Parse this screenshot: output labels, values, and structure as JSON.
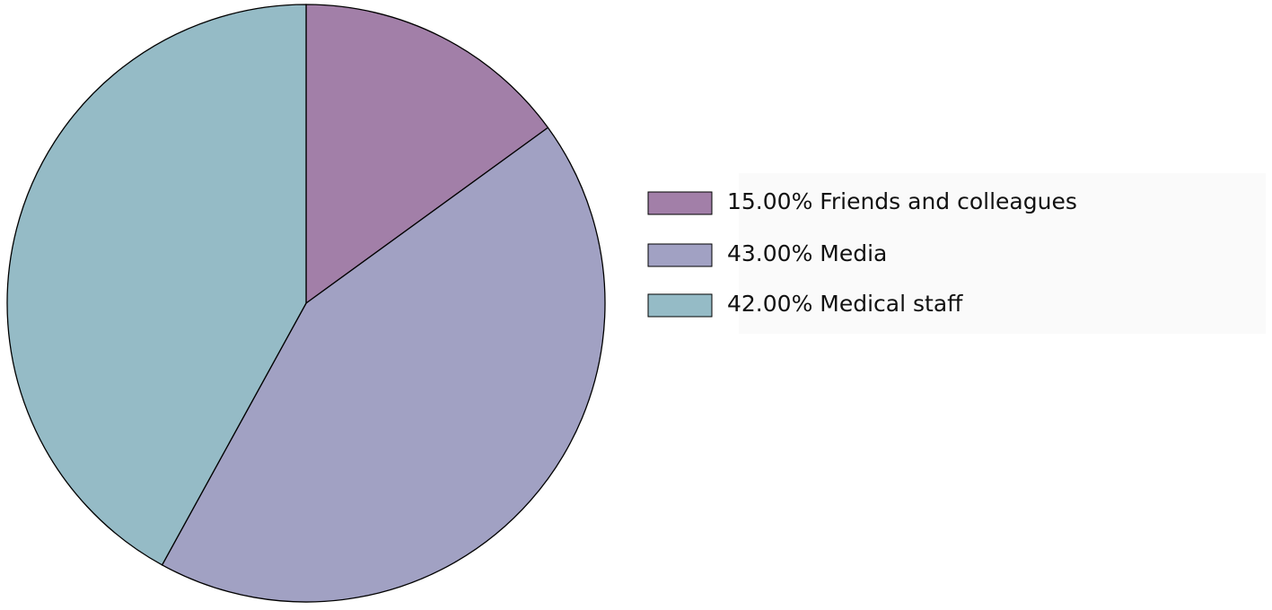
{
  "chart_data": {
    "type": "pie",
    "categories": [
      "Friends and colleagues",
      "Media",
      "Medical staff"
    ],
    "values": [
      15,
      43,
      42
    ],
    "value_labels": [
      "15.00%",
      "43.00%",
      "42.00%"
    ],
    "colors": [
      "#a27fa8",
      "#a1a1c3",
      "#95bbc6"
    ]
  }
}
